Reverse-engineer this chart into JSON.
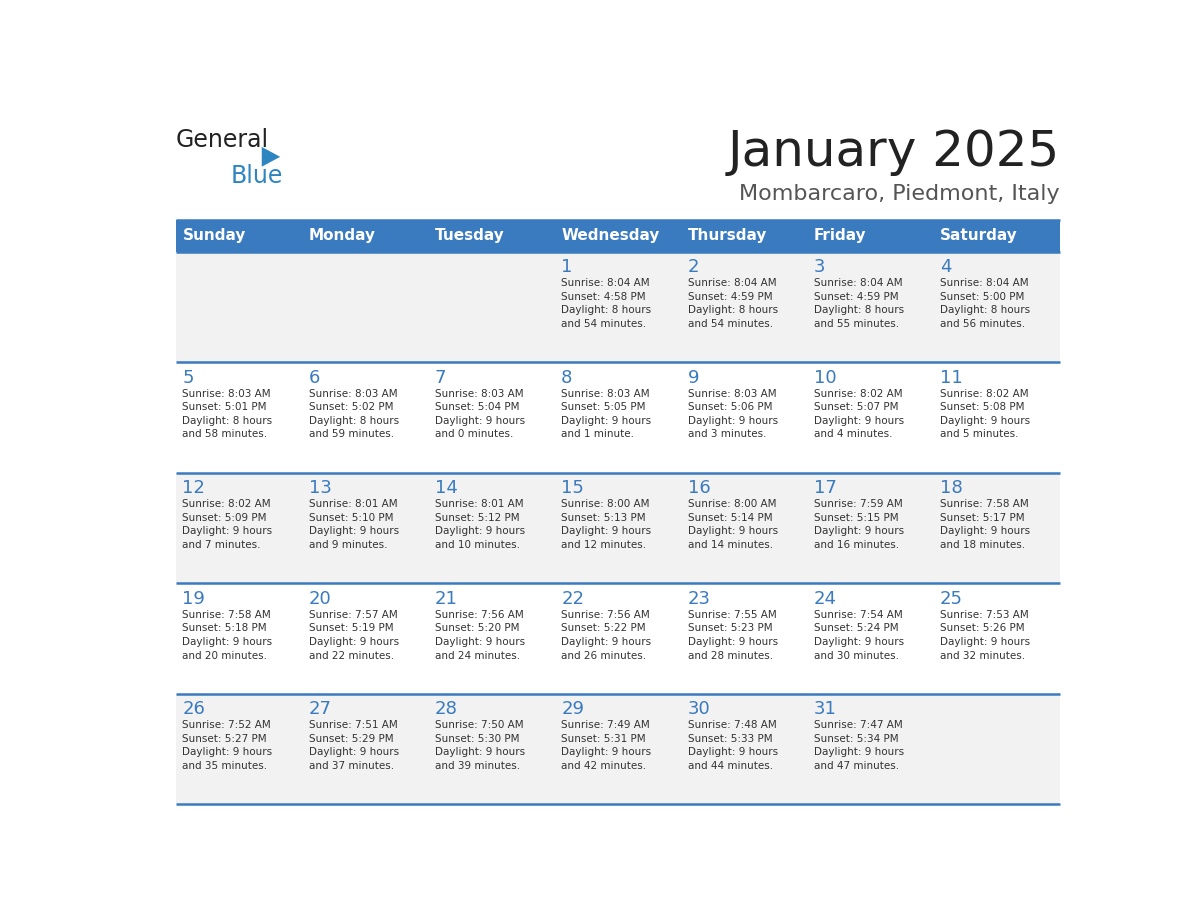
{
  "title": "January 2025",
  "subtitle": "Mombarcaro, Piedmont, Italy",
  "header_bg": "#3a7abf",
  "header_text_color": "#ffffff",
  "cell_bg_odd": "#f2f2f2",
  "cell_bg_even": "#ffffff",
  "day_text_color": "#3a7abf",
  "info_text_color": "#333333",
  "border_color": "#3a7abf",
  "days_of_week": [
    "Sunday",
    "Monday",
    "Tuesday",
    "Wednesday",
    "Thursday",
    "Friday",
    "Saturday"
  ],
  "calendar": [
    [
      {
        "day": "",
        "info": ""
      },
      {
        "day": "",
        "info": ""
      },
      {
        "day": "",
        "info": ""
      },
      {
        "day": "1",
        "info": "Sunrise: 8:04 AM\nSunset: 4:58 PM\nDaylight: 8 hours\nand 54 minutes."
      },
      {
        "day": "2",
        "info": "Sunrise: 8:04 AM\nSunset: 4:59 PM\nDaylight: 8 hours\nand 54 minutes."
      },
      {
        "day": "3",
        "info": "Sunrise: 8:04 AM\nSunset: 4:59 PM\nDaylight: 8 hours\nand 55 minutes."
      },
      {
        "day": "4",
        "info": "Sunrise: 8:04 AM\nSunset: 5:00 PM\nDaylight: 8 hours\nand 56 minutes."
      }
    ],
    [
      {
        "day": "5",
        "info": "Sunrise: 8:03 AM\nSunset: 5:01 PM\nDaylight: 8 hours\nand 58 minutes."
      },
      {
        "day": "6",
        "info": "Sunrise: 8:03 AM\nSunset: 5:02 PM\nDaylight: 8 hours\nand 59 minutes."
      },
      {
        "day": "7",
        "info": "Sunrise: 8:03 AM\nSunset: 5:04 PM\nDaylight: 9 hours\nand 0 minutes."
      },
      {
        "day": "8",
        "info": "Sunrise: 8:03 AM\nSunset: 5:05 PM\nDaylight: 9 hours\nand 1 minute."
      },
      {
        "day": "9",
        "info": "Sunrise: 8:03 AM\nSunset: 5:06 PM\nDaylight: 9 hours\nand 3 minutes."
      },
      {
        "day": "10",
        "info": "Sunrise: 8:02 AM\nSunset: 5:07 PM\nDaylight: 9 hours\nand 4 minutes."
      },
      {
        "day": "11",
        "info": "Sunrise: 8:02 AM\nSunset: 5:08 PM\nDaylight: 9 hours\nand 5 minutes."
      }
    ],
    [
      {
        "day": "12",
        "info": "Sunrise: 8:02 AM\nSunset: 5:09 PM\nDaylight: 9 hours\nand 7 minutes."
      },
      {
        "day": "13",
        "info": "Sunrise: 8:01 AM\nSunset: 5:10 PM\nDaylight: 9 hours\nand 9 minutes."
      },
      {
        "day": "14",
        "info": "Sunrise: 8:01 AM\nSunset: 5:12 PM\nDaylight: 9 hours\nand 10 minutes."
      },
      {
        "day": "15",
        "info": "Sunrise: 8:00 AM\nSunset: 5:13 PM\nDaylight: 9 hours\nand 12 minutes."
      },
      {
        "day": "16",
        "info": "Sunrise: 8:00 AM\nSunset: 5:14 PM\nDaylight: 9 hours\nand 14 minutes."
      },
      {
        "day": "17",
        "info": "Sunrise: 7:59 AM\nSunset: 5:15 PM\nDaylight: 9 hours\nand 16 minutes."
      },
      {
        "day": "18",
        "info": "Sunrise: 7:58 AM\nSunset: 5:17 PM\nDaylight: 9 hours\nand 18 minutes."
      }
    ],
    [
      {
        "day": "19",
        "info": "Sunrise: 7:58 AM\nSunset: 5:18 PM\nDaylight: 9 hours\nand 20 minutes."
      },
      {
        "day": "20",
        "info": "Sunrise: 7:57 AM\nSunset: 5:19 PM\nDaylight: 9 hours\nand 22 minutes."
      },
      {
        "day": "21",
        "info": "Sunrise: 7:56 AM\nSunset: 5:20 PM\nDaylight: 9 hours\nand 24 minutes."
      },
      {
        "day": "22",
        "info": "Sunrise: 7:56 AM\nSunset: 5:22 PM\nDaylight: 9 hours\nand 26 minutes."
      },
      {
        "day": "23",
        "info": "Sunrise: 7:55 AM\nSunset: 5:23 PM\nDaylight: 9 hours\nand 28 minutes."
      },
      {
        "day": "24",
        "info": "Sunrise: 7:54 AM\nSunset: 5:24 PM\nDaylight: 9 hours\nand 30 minutes."
      },
      {
        "day": "25",
        "info": "Sunrise: 7:53 AM\nSunset: 5:26 PM\nDaylight: 9 hours\nand 32 minutes."
      }
    ],
    [
      {
        "day": "26",
        "info": "Sunrise: 7:52 AM\nSunset: 5:27 PM\nDaylight: 9 hours\nand 35 minutes."
      },
      {
        "day": "27",
        "info": "Sunrise: 7:51 AM\nSunset: 5:29 PM\nDaylight: 9 hours\nand 37 minutes."
      },
      {
        "day": "28",
        "info": "Sunrise: 7:50 AM\nSunset: 5:30 PM\nDaylight: 9 hours\nand 39 minutes."
      },
      {
        "day": "29",
        "info": "Sunrise: 7:49 AM\nSunset: 5:31 PM\nDaylight: 9 hours\nand 42 minutes."
      },
      {
        "day": "30",
        "info": "Sunrise: 7:48 AM\nSunset: 5:33 PM\nDaylight: 9 hours\nand 44 minutes."
      },
      {
        "day": "31",
        "info": "Sunrise: 7:47 AM\nSunset: 5:34 PM\nDaylight: 9 hours\nand 47 minutes."
      },
      {
        "day": "",
        "info": ""
      }
    ]
  ],
  "logo_general_color": "#222222",
  "logo_blue_color": "#2e86c1",
  "title_color": "#222222",
  "subtitle_color": "#555555"
}
